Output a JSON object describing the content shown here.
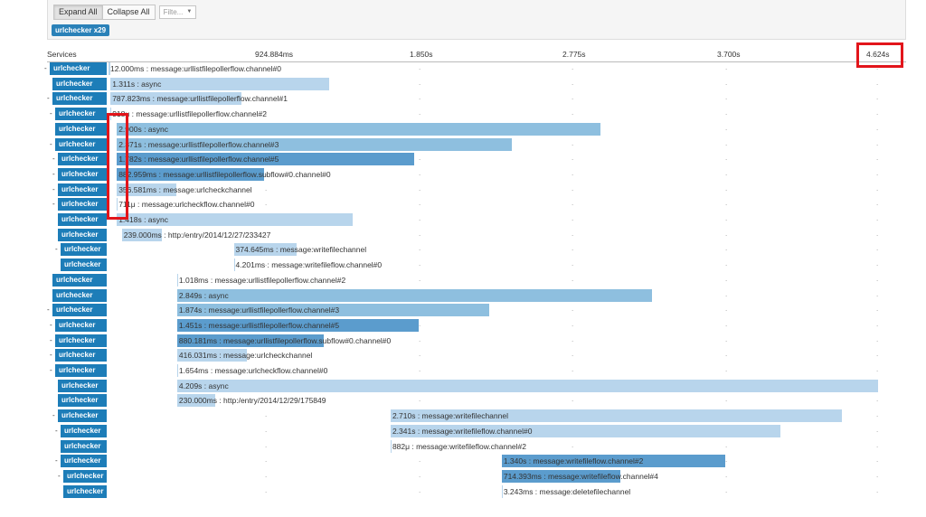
{
  "toolbar": {
    "expand_all": "Expand All",
    "collapse_all": "Collapse All",
    "filter_placeholder": "Filte...",
    "service_badge": "urlchecker x29"
  },
  "header": {
    "services_label": "Services",
    "ticks": [
      "924.884ms",
      "1.850s",
      "2.775s",
      "3.700s",
      "4.624s"
    ]
  },
  "colors": {
    "service": "#1d7db8",
    "bar_light": "#b8d5ec",
    "bar_mid": "#8ebfdf",
    "bar_dark": "#5b9ccd",
    "highlight": "#e2151b"
  },
  "rows": [
    {
      "service": "urlchecker",
      "toggle": "-",
      "indent": 0,
      "label": "12.000ms : message:urllistfilepollerflow.channel#0",
      "start_ms": 0,
      "duration_ms": 12.0,
      "shade": "light"
    },
    {
      "service": "urlchecker",
      "toggle": "",
      "indent": 1,
      "label": "1.311s : async",
      "start_ms": 12.0,
      "duration_ms": 1311,
      "shade": "light"
    },
    {
      "service": "urlchecker",
      "toggle": "-",
      "indent": 1,
      "label": "787.823ms : message:urllistfilepollerflow.channel#1",
      "start_ms": 12.0,
      "duration_ms": 787.823,
      "shade": "light"
    },
    {
      "service": "urlchecker",
      "toggle": "-",
      "indent": 2,
      "label": "918μ : message:urllistfilepollerflow.channel#2",
      "start_ms": 12.0,
      "duration_ms": 0.918,
      "shade": "light"
    },
    {
      "service": "urlchecker",
      "toggle": "",
      "indent": 2,
      "label": "2.900s : async",
      "start_ms": 50,
      "duration_ms": 2900,
      "shade": "mid"
    },
    {
      "service": "urlchecker",
      "toggle": "-",
      "indent": 2,
      "label": "2.371s : message:urllistfilepollerflow.channel#3",
      "start_ms": 50,
      "duration_ms": 2371,
      "shade": "mid"
    },
    {
      "service": "urlchecker",
      "toggle": "-",
      "indent": 3,
      "label": "1.782s : message:urllistfilepollerflow.channel#5",
      "start_ms": 50,
      "duration_ms": 1782,
      "shade": "dark"
    },
    {
      "service": "urlchecker",
      "toggle": "-",
      "indent": 3,
      "label": "882.959ms : message:urllistfilepollerflow.subflow#0.channel#0",
      "start_ms": 50,
      "duration_ms": 882.959,
      "shade": "dark"
    },
    {
      "service": "urlchecker",
      "toggle": "-",
      "indent": 3,
      "label": "356.581ms : message:urlcheckchannel",
      "start_ms": 50,
      "duration_ms": 356.581,
      "shade": "light"
    },
    {
      "service": "urlchecker",
      "toggle": "-",
      "indent": 3,
      "label": "711μ : message:urlcheckflow.channel#0",
      "start_ms": 50,
      "duration_ms": 0.711,
      "shade": "light"
    },
    {
      "service": "urlchecker",
      "toggle": "",
      "indent": 3,
      "label": "1.418s : async",
      "start_ms": 50,
      "duration_ms": 1418,
      "shade": "light"
    },
    {
      "service": "urlchecker",
      "toggle": "",
      "indent": 3,
      "label": "239.000ms : http:/entry/2014/12/27/233427",
      "start_ms": 80,
      "duration_ms": 239.0,
      "shade": "light"
    },
    {
      "service": "urlchecker",
      "toggle": "-",
      "indent": 4,
      "label": "374.645ms : message:writefilechannel",
      "start_ms": 752,
      "duration_ms": 374.645,
      "shade": "light"
    },
    {
      "service": "urlchecker",
      "toggle": "",
      "indent": 4,
      "label": "4.201ms : message:writefileflow.channel#0",
      "start_ms": 752,
      "duration_ms": 4.201,
      "shade": "light"
    },
    {
      "service": "urlchecker",
      "toggle": "",
      "indent": 1,
      "label": "1.018ms : message:urllistfilepollerflow.channel#2",
      "start_ms": 412,
      "duration_ms": 1.018,
      "shade": "light"
    },
    {
      "service": "urlchecker",
      "toggle": "",
      "indent": 1,
      "label": "2.849s : async",
      "start_ms": 412,
      "duration_ms": 2849,
      "shade": "mid"
    },
    {
      "service": "urlchecker",
      "toggle": "-",
      "indent": 1,
      "label": "1.874s : message:urllistfilepollerflow.channel#3",
      "start_ms": 412,
      "duration_ms": 1874,
      "shade": "mid"
    },
    {
      "service": "urlchecker",
      "toggle": "-",
      "indent": 2,
      "label": "1.451s : message:urllistfilepollerflow.channel#5",
      "start_ms": 412,
      "duration_ms": 1451,
      "shade": "dark"
    },
    {
      "service": "urlchecker",
      "toggle": "-",
      "indent": 2,
      "label": "880.181ms : message:urllistfilepollerflow.subflow#0.channel#0",
      "start_ms": 412,
      "duration_ms": 880.181,
      "shade": "dark"
    },
    {
      "service": "urlchecker",
      "toggle": "-",
      "indent": 2,
      "label": "416.031ms : message:urlcheckchannel",
      "start_ms": 412,
      "duration_ms": 416.031,
      "shade": "light"
    },
    {
      "service": "urlchecker",
      "toggle": "-",
      "indent": 2,
      "label": "1.654ms : message:urlcheckflow.channel#0",
      "start_ms": 412,
      "duration_ms": 1.654,
      "shade": "light"
    },
    {
      "service": "urlchecker",
      "toggle": "",
      "indent": 3,
      "label": "4.209s : async",
      "start_ms": 412,
      "duration_ms": 4209,
      "shade": "light"
    },
    {
      "service": "urlchecker",
      "toggle": "",
      "indent": 3,
      "label": "230.000ms : http:/entry/2014/12/29/175849",
      "start_ms": 412,
      "duration_ms": 230.0,
      "shade": "light"
    },
    {
      "service": "urlchecker",
      "toggle": "-",
      "indent": 3,
      "label": "2.710s : message:writefilechannel",
      "start_ms": 1693,
      "duration_ms": 2710,
      "shade": "light"
    },
    {
      "service": "urlchecker",
      "toggle": "-",
      "indent": 4,
      "label": "2.341s : message:writefileflow.channel#0",
      "start_ms": 1693,
      "duration_ms": 2341,
      "shade": "light"
    },
    {
      "service": "urlchecker",
      "toggle": "",
      "indent": 4,
      "label": "882μ : message:writefileflow.channel#2",
      "start_ms": 1693,
      "duration_ms": 0.882,
      "shade": "light"
    },
    {
      "service": "urlchecker",
      "toggle": "-",
      "indent": 4,
      "label": "1.340s : message:writefileflow.channel#2",
      "start_ms": 2360,
      "duration_ms": 1340,
      "shade": "dark"
    },
    {
      "service": "urlchecker",
      "toggle": "-",
      "indent": 5,
      "label": "714.393ms : message:writefileflow.channel#4",
      "start_ms": 2360,
      "duration_ms": 714.393,
      "shade": "dark"
    },
    {
      "service": "urlchecker",
      "toggle": "",
      "indent": 5,
      "label": "3.243ms : message:deletefilechannel",
      "start_ms": 2360,
      "duration_ms": 3.243,
      "shade": "light"
    }
  ]
}
